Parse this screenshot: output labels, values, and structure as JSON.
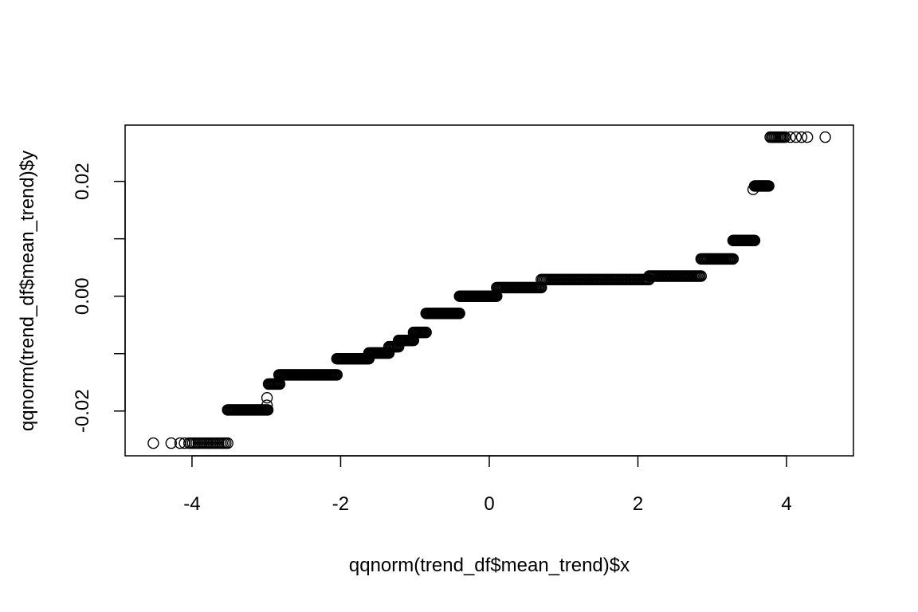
{
  "chart_data": {
    "type": "scatter",
    "title": "",
    "xlabel": "qqnorm(trend_df$mean_trend)$x",
    "ylabel": "qqnorm(trend_df$mean_trend)$y",
    "xlim": [
      -4.9,
      4.9
    ],
    "ylim": [
      -0.0278,
      0.0298
    ],
    "xticks": [
      -4,
      -2,
      0,
      2,
      4
    ],
    "xtick_labels": [
      "-4",
      "-2",
      "0",
      "2",
      "4"
    ],
    "yticks": [
      -0.02,
      -0.01,
      0.0,
      0.01,
      0.02
    ],
    "ytick_labels": [
      "-0.02",
      "",
      "0.00",
      "",
      "0.02"
    ],
    "grid": false,
    "marker": "open-circle",
    "series": [
      {
        "segments": [
          {
            "x0": -4.52,
            "x1": -4.52,
            "y": -0.0256,
            "n": 1
          },
          {
            "x0": -4.28,
            "x1": -4.28,
            "y": -0.0256,
            "n": 1
          },
          {
            "x0": -4.16,
            "x1": -4.1,
            "y": -0.0256,
            "n": 2
          },
          {
            "x0": -4.04,
            "x1": -3.52,
            "y": -0.0256,
            "n": 22
          },
          {
            "x0": -3.52,
            "x1": -2.98,
            "y": -0.0198,
            "n": 40
          },
          {
            "x0": -2.99,
            "x1": -2.99,
            "y": -0.019,
            "n": 1
          },
          {
            "x0": -2.99,
            "x1": -2.99,
            "y": -0.0177,
            "n": 1
          },
          {
            "x0": -2.97,
            "x1": -2.82,
            "y": -0.0153,
            "n": 12
          },
          {
            "x0": -2.83,
            "x1": -2.05,
            "y": -0.0137,
            "n": 60
          },
          {
            "x0": -2.05,
            "x1": -1.62,
            "y": -0.0109,
            "n": 34
          },
          {
            "x0": -1.62,
            "x1": -1.35,
            "y": -0.0099,
            "n": 22
          },
          {
            "x0": -1.35,
            "x1": -1.22,
            "y": -0.0088,
            "n": 10
          },
          {
            "x0": -1.22,
            "x1": -1.02,
            "y": -0.0077,
            "n": 16
          },
          {
            "x0": -1.02,
            "x1": -0.85,
            "y": -0.0063,
            "n": 14
          },
          {
            "x0": -0.85,
            "x1": -0.4,
            "y": -0.003,
            "n": 40
          },
          {
            "x0": -0.4,
            "x1": 0.1,
            "y": 0.0,
            "n": 40
          },
          {
            "x0": 0.1,
            "x1": 0.7,
            "y": 0.0015,
            "n": 40
          },
          {
            "x0": 0.7,
            "x1": 2.15,
            "y": 0.0029,
            "n": 80
          },
          {
            "x0": 2.15,
            "x1": 2.85,
            "y": 0.0035,
            "n": 40
          },
          {
            "x0": 2.85,
            "x1": 3.28,
            "y": 0.0065,
            "n": 30
          },
          {
            "x0": 3.28,
            "x1": 3.57,
            "y": 0.0097,
            "n": 24
          },
          {
            "x0": 3.55,
            "x1": 3.55,
            "y": 0.0186,
            "n": 1
          },
          {
            "x0": 3.57,
            "x1": 3.76,
            "y": 0.0192,
            "n": 16
          },
          {
            "x0": 3.78,
            "x1": 3.98,
            "y": 0.0277,
            "n": 12
          },
          {
            "x0": 4.05,
            "x1": 4.28,
            "y": 0.0277,
            "n": 4
          },
          {
            "x0": 4.52,
            "x1": 4.52,
            "y": 0.0277,
            "n": 1
          }
        ]
      }
    ]
  }
}
